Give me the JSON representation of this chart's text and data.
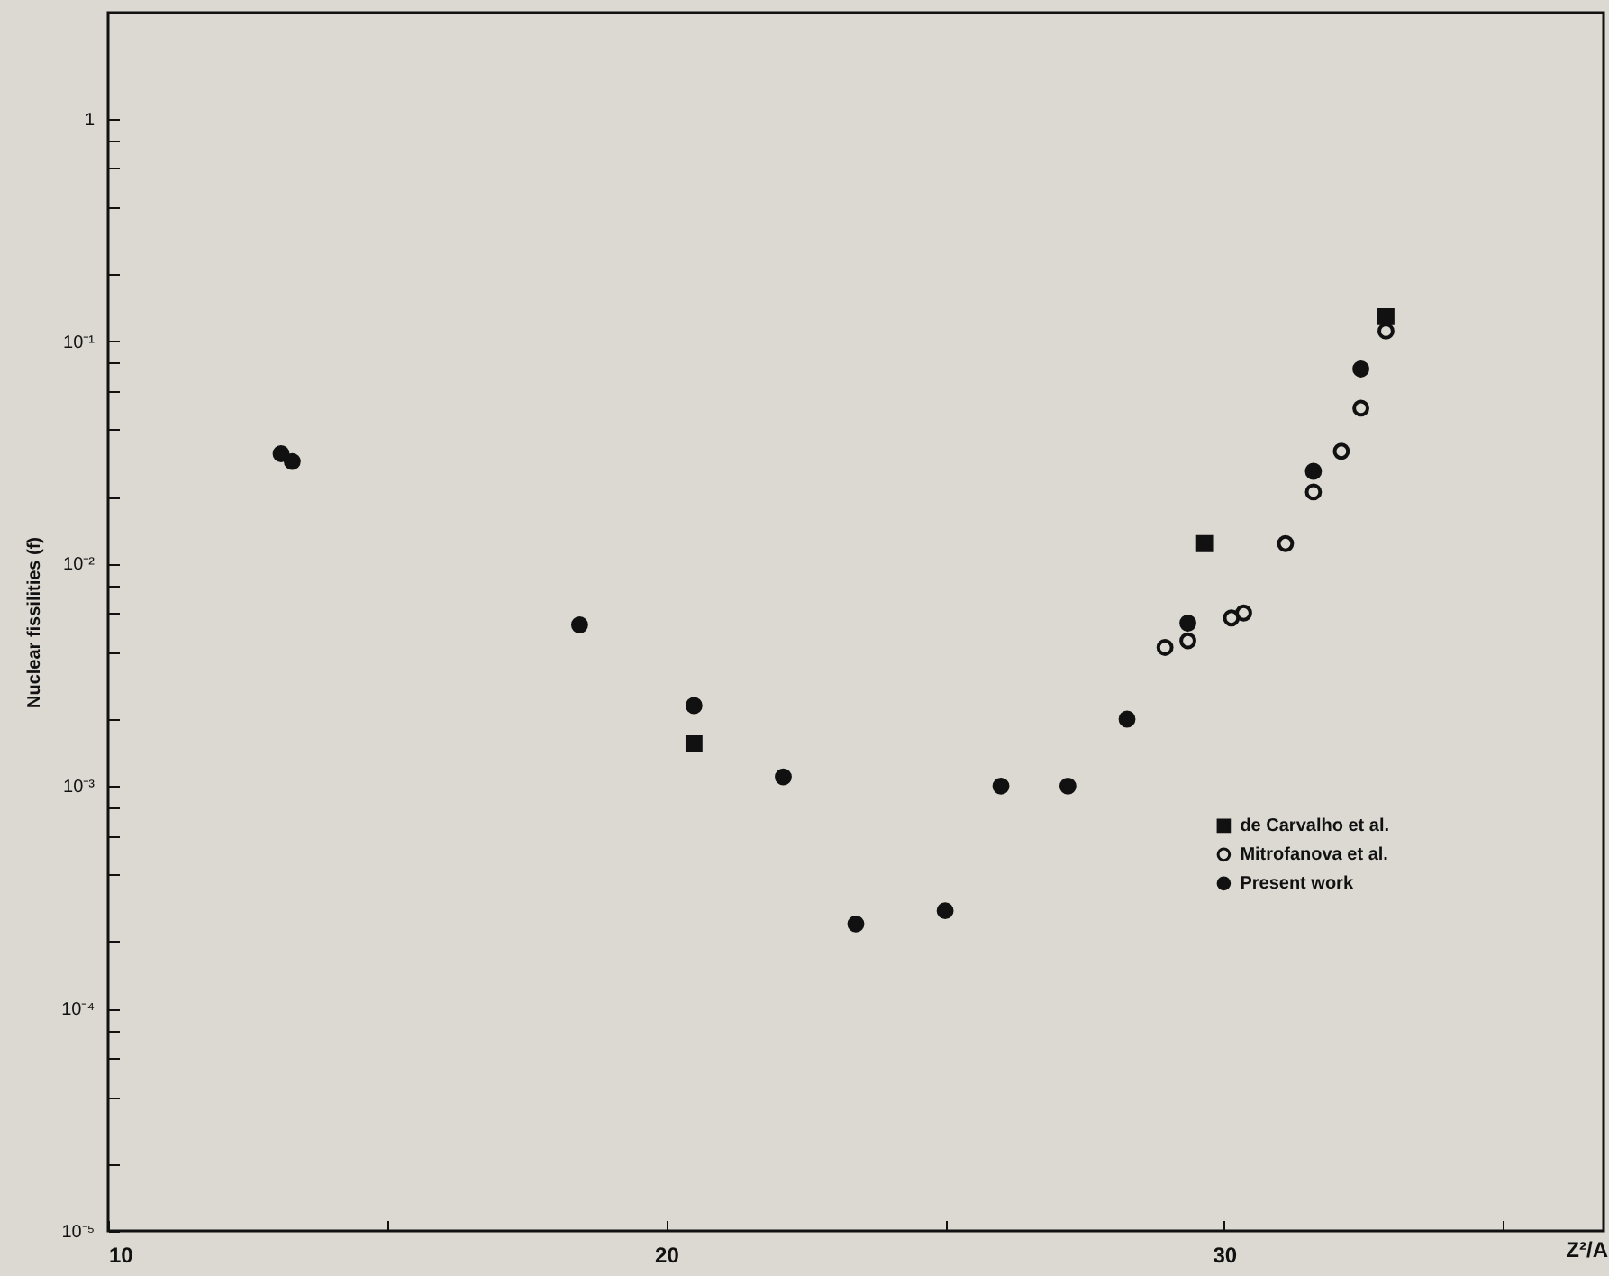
{
  "chart_data": {
    "type": "scatter",
    "xlabel": "Z²/A",
    "ylabel": "Nuclear fissilities (f)",
    "xlim": [
      10,
      36.8
    ],
    "xticks": [
      10,
      {
        "value": 15,
        "label": null
      },
      20,
      {
        "value": 25,
        "label": null
      },
      30,
      {
        "value": 35,
        "label": null
      }
    ],
    "ylim": [
      1e-05,
      3
    ],
    "log": true,
    "yticks": [
      1,
      {
        "value": 0.8,
        "label": null
      },
      {
        "value": 0.6,
        "label": null
      },
      {
        "value": 0.4,
        "label": null
      },
      {
        "value": 0.2,
        "label": null
      },
      {
        "value": 0.1,
        "label": "10⁻¹"
      },
      {
        "value": 0.08,
        "label": null
      },
      {
        "value": 0.06,
        "label": null
      },
      {
        "value": 0.04,
        "label": null
      },
      {
        "value": 0.02,
        "label": null
      },
      {
        "value": 0.01,
        "label": "10⁻²"
      },
      {
        "value": 0.008,
        "label": null
      },
      {
        "value": 0.006,
        "label": null
      },
      {
        "value": 0.004,
        "label": null
      },
      {
        "value": 0.002,
        "label": null
      },
      {
        "value": 0.001,
        "label": "10⁻³"
      },
      {
        "value": 0.0008,
        "label": null
      },
      {
        "value": 0.0006,
        "label": null
      },
      {
        "value": 0.0004,
        "label": null
      },
      {
        "value": 0.0002,
        "label": null
      },
      {
        "value": 0.0001,
        "label": "10⁻⁴"
      },
      {
        "value": 8e-05,
        "label": null
      },
      {
        "value": 6e-05,
        "label": null
      },
      {
        "value": 4e-05,
        "label": null
      },
      {
        "value": 2e-05,
        "label": null
      },
      {
        "value": 1e-05,
        "label": "10⁻⁵"
      }
    ],
    "grid": false,
    "legend": "right",
    "series": [
      {
        "name": "de Carvalho et al.",
        "color": "#111111",
        "marker": "square",
        "x": [
          20.5,
          29.65,
          32.9
        ],
        "values": [
          0.00155,
          0.0123,
          0.129
        ]
      },
      {
        "name": "Mitrofanova et al.",
        "color": "#111111",
        "marker": "circle-open",
        "x": [
          28.94,
          29.35,
          30.13,
          30.35,
          31.1,
          31.6,
          32.1,
          32.45,
          32.9
        ],
        "values": [
          0.0042,
          0.0045,
          0.0057,
          0.006,
          0.0123,
          0.021,
          0.032,
          0.05,
          0.111
        ]
      },
      {
        "name": "Present work",
        "color": "#111111",
        "marker": "circle",
        "x": [
          13.1,
          13.3,
          18.45,
          20.5,
          22.1,
          23.4,
          25.0,
          26.0,
          27.2,
          28.26,
          29.35,
          31.6,
          32.45
        ],
        "values": [
          0.0312,
          0.0288,
          0.0053,
          0.0023,
          0.0011,
          0.00024,
          0.000275,
          0.001,
          0.001,
          0.002,
          0.0054,
          0.026,
          0.075
        ]
      }
    ]
  }
}
